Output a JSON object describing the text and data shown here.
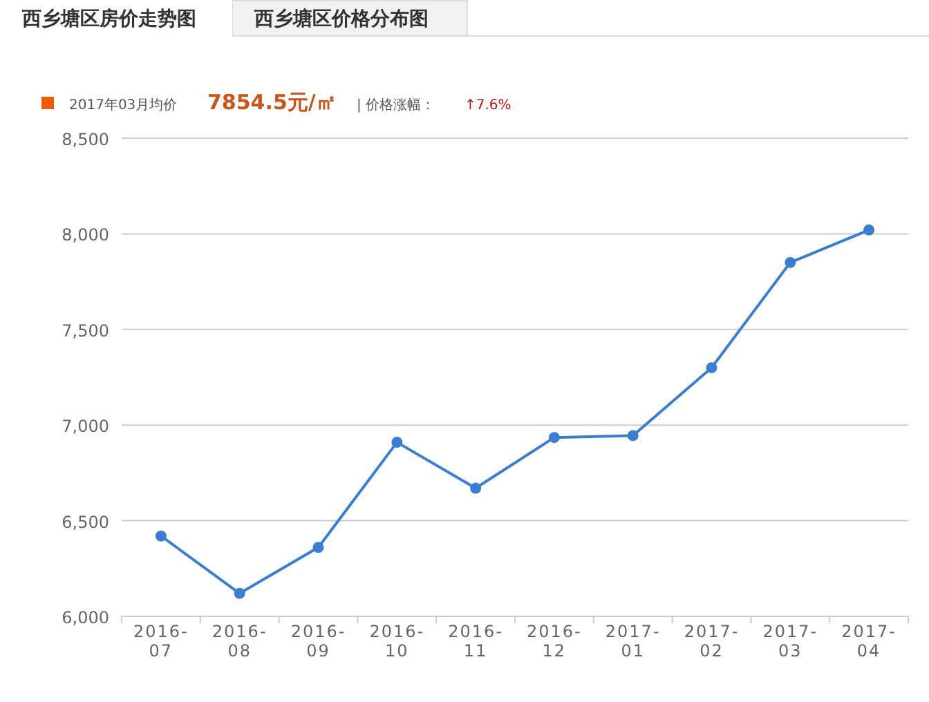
{
  "chart_data": {
    "type": "line",
    "title": "西乡塘区房价走势图",
    "subtitle": "西乡塘区价格分布图",
    "annotations": [
      "2017年03月均价",
      "7854.5元/㎡",
      "| 价格涨幅：",
      "↑7.6%"
    ],
    "categories": [
      "2016-07",
      "2016-08",
      "2016-09",
      "2016-10",
      "2016-11",
      "2016-12",
      "2017-01",
      "2017-02",
      "2017-03",
      "2017-04"
    ],
    "series": [
      {
        "color": "#3a7fcf",
        "values": [
          6420,
          6120,
          6360,
          6910,
          6670,
          6935,
          6945,
          7300,
          7850,
          8020
        ]
      }
    ],
    "ylim": [
      6000,
      8500
    ],
    "yticks": [
      {
        "value": 6000,
        "label": "6,000"
      },
      {
        "value": 6500,
        "label": "6,500"
      },
      {
        "value": 7000,
        "label": "7,000"
      },
      {
        "value": 7500,
        "label": "7,500"
      },
      {
        "value": 8000,
        "label": "8,000"
      },
      {
        "value": 8500,
        "label": "8,500"
      }
    ],
    "grid": "y",
    "marker": "circle",
    "line_style": "solid"
  }
}
